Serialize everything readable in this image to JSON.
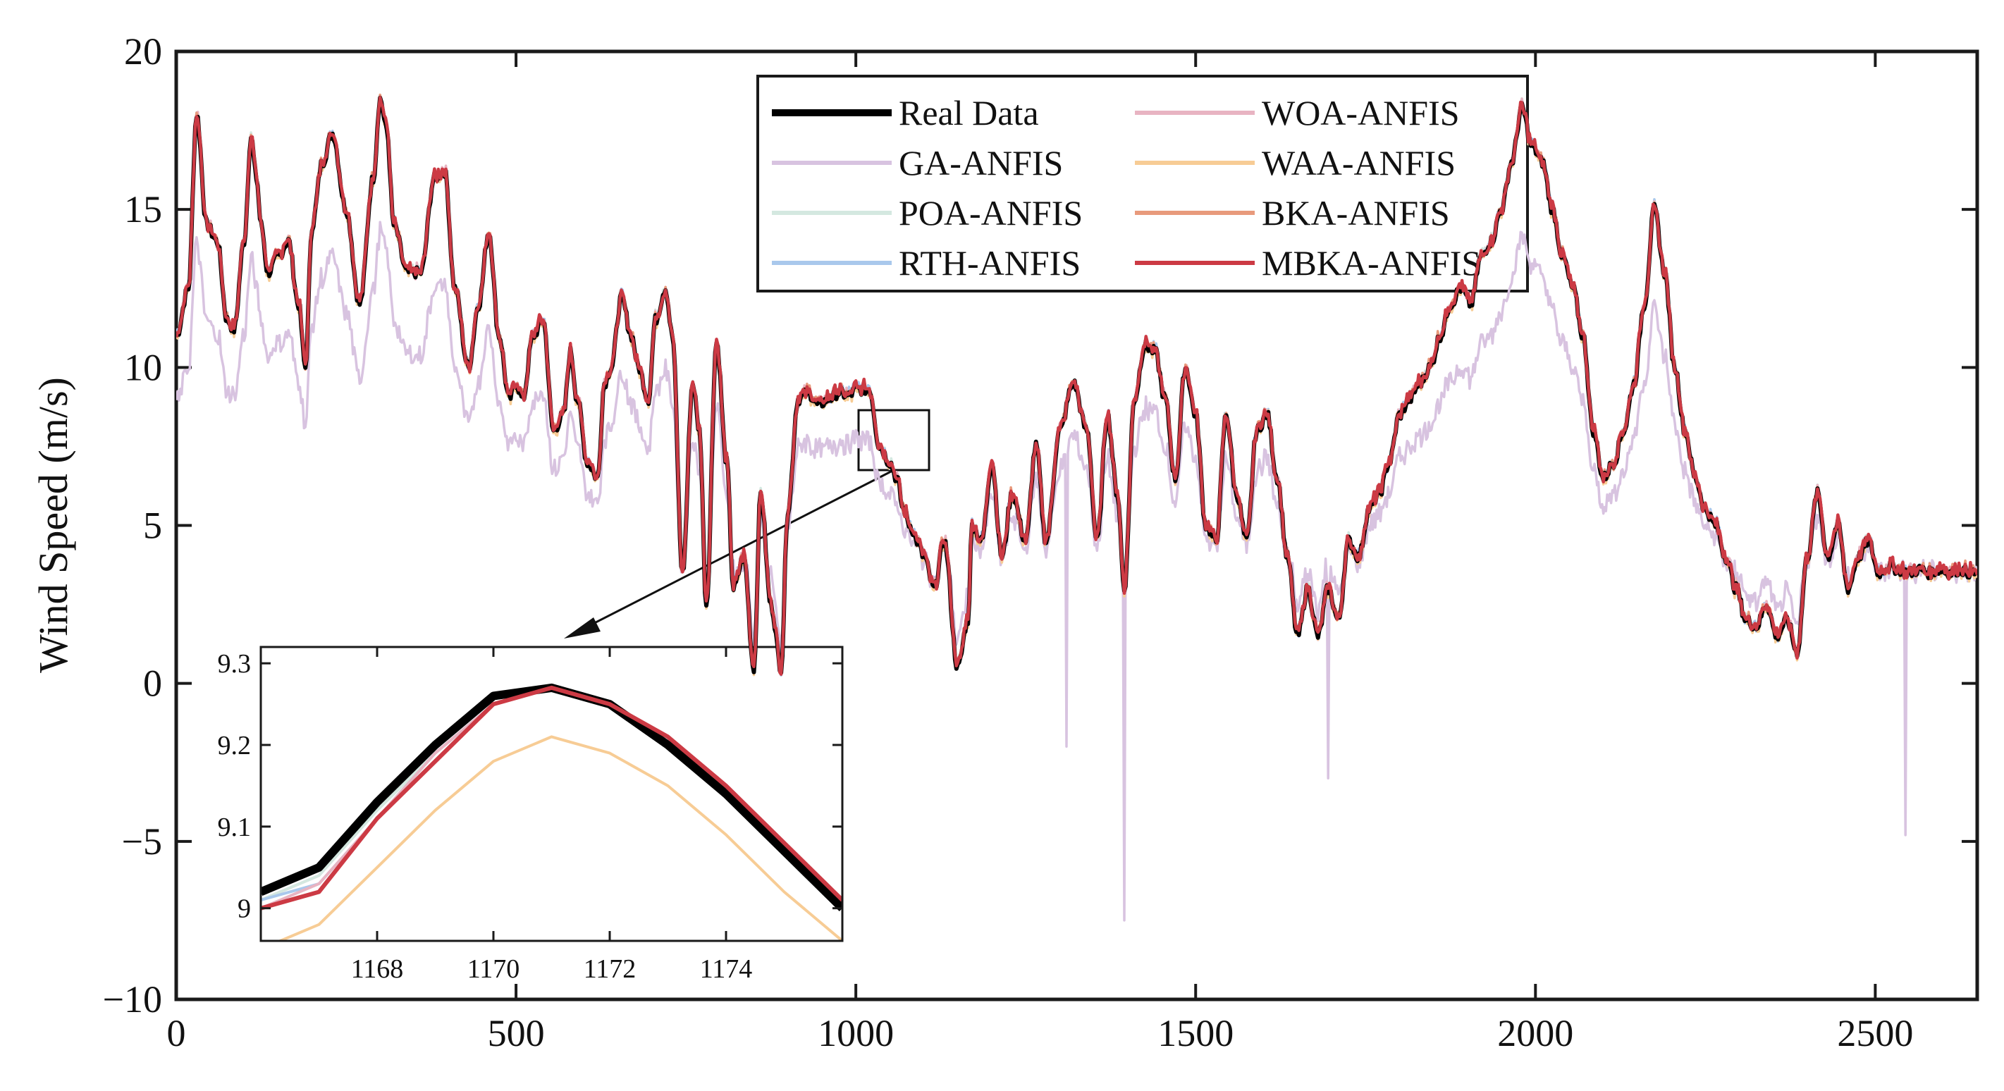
{
  "chart_data": [
    {
      "type": "line",
      "title": "",
      "xlabel": "",
      "ylabel": "Wind Speed (m/s)",
      "xlim": [
        0,
        2650
      ],
      "ylim": [
        -10,
        20
      ],
      "xticks": [
        0,
        500,
        1000,
        1500,
        2000,
        2500
      ],
      "xtick_labels": [
        "0",
        "500",
        "1000",
        "1500",
        "2000",
        "2500"
      ],
      "yticks": [
        -10,
        -5,
        0,
        5,
        10,
        15,
        20
      ],
      "ytick_labels": [
        "−10",
        "−5",
        "0",
        "5",
        "10",
        "15",
        "20"
      ],
      "grid": false,
      "legend_placement": "top-center",
      "series": [
        {
          "name": "Real Data",
          "color": "#000000"
        },
        {
          "name": "GA-ANFIS",
          "color": "#d8c3e0"
        },
        {
          "name": "POA-ANFIS",
          "color": "#d4e8e0"
        },
        {
          "name": "RTH-ANFIS",
          "color": "#a9c8ec"
        },
        {
          "name": "WOA-ANFIS",
          "color": "#e8b4c2"
        },
        {
          "name": "WAA-ANFIS",
          "color": "#f7cc95"
        },
        {
          "name": "BKA-ANFIS",
          "color": "#e89a7c"
        },
        {
          "name": "MBKA-ANFIS",
          "color": "#cc3a44"
        }
      ],
      "real_data_keypoints": {
        "x": [
          0,
          18,
          30,
          45,
          60,
          75,
          85,
          100,
          110,
          118,
          125,
          135,
          150,
          165,
          180,
          190,
          200,
          215,
          230,
          250,
          270,
          290,
          300,
          310,
          320,
          340,
          360,
          380,
          395,
          410,
          430,
          445,
          460,
          475,
          490,
          500,
          510,
          525,
          540,
          555,
          570,
          580,
          590,
          605,
          620,
          630,
          640,
          655,
          670,
          680,
          695,
          705,
          720,
          730,
          745,
          760,
          770,
          780,
          795,
          810,
          820,
          835,
          850,
          860,
          875,
          890,
          900,
          915,
          930,
          945,
          960,
          975,
          990,
          1000,
          1010,
          1020,
          1035,
          1050,
          1060,
          1070,
          1080,
          1090,
          1100,
          1115,
          1130,
          1150,
          1165,
          1171,
          1185,
          1200,
          1215,
          1230,
          1250,
          1265,
          1280,
          1300,
          1320,
          1340,
          1355,
          1370,
          1385,
          1395,
          1410,
          1425,
          1440,
          1455,
          1470,
          1485,
          1500,
          1515,
          1530,
          1545,
          1560,
          1575,
          1590,
          1605,
          1620,
          1635,
          1650,
          1665,
          1680,
          1695,
          1710,
          1725,
          1740,
          1755,
          1770,
          1785,
          1800,
          1815,
          1830,
          1845,
          1860,
          1875,
          1890,
          1905,
          1920,
          1935,
          1950,
          1965,
          1980,
          1995,
          2010,
          2025,
          2040,
          2055,
          2070,
          2085,
          2100,
          2115,
          2130,
          2145,
          2160,
          2175,
          2190,
          2205,
          2220,
          2235,
          2250,
          2265,
          2280,
          2295,
          2310,
          2325,
          2340,
          2355,
          2370,
          2385,
          2400,
          2415,
          2430,
          2445,
          2460,
          2475,
          2490,
          2505,
          2520,
          2535,
          2550,
          2565,
          2580,
          2595,
          2610,
          2625,
          2640,
          2650
        ],
        "y": [
          11.0,
          12.5,
          18.0,
          14.5,
          14.0,
          11.5,
          11.2,
          14.0,
          17.3,
          16.0,
          14.5,
          13.0,
          13.5,
          14.0,
          12.0,
          10.0,
          14.5,
          16.5,
          17.4,
          15.0,
          12.0,
          16.0,
          18.5,
          17.5,
          14.5,
          13.0,
          13.0,
          16.0,
          16.2,
          12.5,
          10.0,
          12.0,
          14.3,
          11.0,
          9.0,
          9.5,
          9.0,
          11.0,
          11.5,
          8.0,
          8.5,
          10.5,
          9.0,
          7.0,
          6.5,
          9.5,
          10.0,
          12.2,
          11.0,
          10.0,
          9.0,
          11.5,
          12.5,
          11.0,
          3.5,
          9.5,
          8.0,
          2.5,
          10.8,
          7.0,
          3.0,
          4.0,
          0.5,
          6.0,
          2.5,
          0.5,
          5.5,
          9.0,
          9.2,
          8.8,
          9.0,
          9.2,
          9.1,
          9.3,
          9.3,
          9.3,
          7.5,
          7.0,
          6.5,
          5.5,
          5.0,
          4.5,
          4.0,
          3.0,
          4.5,
          0.5,
          2.0,
          5.0,
          4.5,
          7.0,
          4.0,
          6.0,
          4.5,
          7.5,
          4.5,
          8.0,
          9.5,
          8.0,
          4.5,
          8.5,
          6.0,
          3.0,
          9.0,
          10.7,
          10.5,
          9.0,
          6.5,
          10.0,
          8.5,
          5.0,
          4.5,
          8.5,
          6.0,
          4.5,
          8.0,
          8.5,
          6.5,
          4.0,
          1.5,
          3.0,
          1.5,
          3.0,
          2.0,
          4.5,
          4.0,
          5.5,
          6.0,
          7.0,
          8.5,
          9.0,
          9.5,
          10.0,
          11.0,
          12.0,
          12.5,
          12.0,
          13.5,
          14.0,
          15.0,
          16.5,
          18.2,
          17.0,
          16.5,
          15.0,
          13.5,
          12.5,
          11.0,
          8.0,
          6.5,
          7.0,
          8.0,
          9.5,
          12.0,
          15.0,
          13.0,
          10.0,
          8.0,
          6.5,
          5.5,
          5.0,
          4.0,
          3.0,
          2.0,
          1.8,
          2.5,
          1.5,
          2.0,
          1.0,
          4.0,
          6.0,
          4.0,
          5.0,
          3.0,
          4.0,
          4.5,
          3.5,
          3.7,
          3.6,
          3.5,
          3.6,
          3.5,
          3.6,
          3.5,
          3.6,
          3.5,
          3.5
        ]
      },
      "ga_offset": -3.0,
      "ga_spikes": [
        {
          "x": 1395,
          "y": -7.5
        },
        {
          "x": 2545,
          "y": -4.8
        },
        {
          "x": 1310,
          "y": -2.0
        },
        {
          "x": 1695,
          "y": -3.0
        }
      ]
    },
    {
      "type": "line",
      "title": "",
      "xlabel": "",
      "ylabel": "",
      "xlim": [
        1166,
        1176
      ],
      "ylim": [
        8.96,
        9.32
      ],
      "xticks": [
        1168,
        1170,
        1172,
        1174
      ],
      "xtick_labels": [
        "1168",
        "1170",
        "1172",
        "1174"
      ],
      "yticks": [
        9.0,
        9.1,
        9.2,
        9.3
      ],
      "ytick_labels": [
        "9",
        "9.1",
        "9.2",
        "9.3"
      ],
      "x": [
        1166,
        1167,
        1168,
        1169,
        1170,
        1171,
        1172,
        1173,
        1174,
        1175,
        1176
      ],
      "series": [
        {
          "name": "Real Data",
          "color": "#000000",
          "values": [
            9.02,
            9.05,
            9.13,
            9.2,
            9.26,
            9.27,
            9.25,
            9.2,
            9.14,
            9.07,
            9.0
          ]
        },
        {
          "name": "GA-ANFIS",
          "color": "#d8c3e0",
          "values": [
            9.01,
            9.04,
            9.12,
            9.19,
            9.25,
            9.27,
            9.25,
            9.2,
            9.14,
            9.07,
            9.0
          ]
        },
        {
          "name": "POA-ANFIS",
          "color": "#d4e8e0",
          "values": [
            9.01,
            9.04,
            9.12,
            9.19,
            9.25,
            9.27,
            9.25,
            9.2,
            9.14,
            9.07,
            9.0
          ]
        },
        {
          "name": "RTH-ANFIS",
          "color": "#a9c8ec",
          "values": [
            9.01,
            9.03,
            9.11,
            9.19,
            9.25,
            9.27,
            9.25,
            9.21,
            9.15,
            9.08,
            9.01
          ]
        },
        {
          "name": "WOA-ANFIS",
          "color": "#e8b4c2",
          "values": [
            9.0,
            9.03,
            9.11,
            9.19,
            9.25,
            9.27,
            9.25,
            9.21,
            9.15,
            9.08,
            9.01
          ]
        },
        {
          "name": "WAA-ANFIS",
          "color": "#f7cc95",
          "values": [
            8.95,
            8.98,
            9.05,
            9.12,
            9.18,
            9.21,
            9.19,
            9.15,
            9.09,
            9.02,
            8.96
          ]
        },
        {
          "name": "BKA-ANFIS",
          "color": "#e89a7c",
          "values": [
            9.0,
            9.02,
            9.11,
            9.18,
            9.25,
            9.27,
            9.25,
            9.21,
            9.15,
            9.08,
            9.01
          ]
        },
        {
          "name": "MBKA-ANFIS",
          "color": "#cc3a44",
          "values": [
            9.0,
            9.02,
            9.11,
            9.18,
            9.25,
            9.27,
            9.25,
            9.21,
            9.15,
            9.08,
            9.01
          ]
        }
      ]
    }
  ]
}
